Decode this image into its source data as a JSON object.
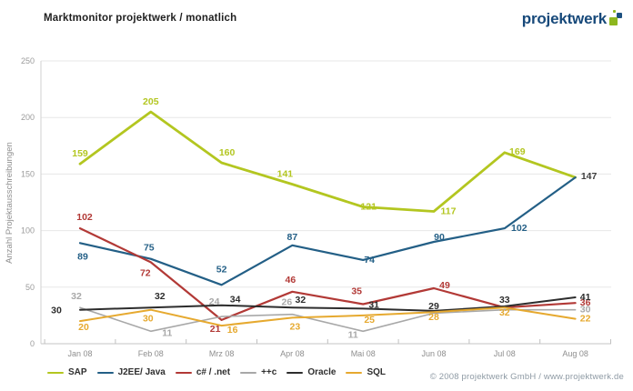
{
  "header": {
    "title": "Marktmonitor projektwerk / monatlich"
  },
  "logo": {
    "text": "projektwerk",
    "green": "#8db71e",
    "blue": "#1d5180"
  },
  "footer": {
    "copyright": "© 2008 projektwerk GmbH / www.projektwerk.de"
  },
  "chart_data": {
    "type": "line",
    "title": "Marktmonitor projektwerk / monatlich",
    "xlabel": "",
    "ylabel": "Anzahl Projektausschreibungen",
    "ylim": [
      0,
      250
    ],
    "yticks": [
      0,
      50,
      100,
      150,
      200,
      250
    ],
    "grid": "horizontal",
    "legend_position": "bottom-left",
    "categories": [
      "Jan 08",
      "Feb 08",
      "Mrz 08",
      "Apr 08",
      "Mai 08",
      "Jun 08",
      "Jul 08",
      "Aug 08"
    ],
    "series": [
      {
        "name": "SAP",
        "color": "#b3c620",
        "width": 2.8,
        "values": [
          159,
          205,
          160,
          141,
          121,
          117,
          169,
          147
        ],
        "label_show": [
          1,
          1,
          1,
          1,
          1,
          1,
          1,
          0
        ],
        "label_pos": [
          [
            0,
            -8
          ],
          [
            0,
            -8
          ],
          [
            6,
            -8
          ],
          [
            -8,
            -8
          ],
          [
            6,
            3
          ],
          [
            16,
            3
          ],
          [
            14,
            2
          ],
          [
            0,
            0
          ]
        ]
      },
      {
        "name": "J2EE/ Java",
        "color": "#235f86",
        "width": 2.2,
        "values": [
          89,
          75,
          52,
          87,
          74,
          90,
          102,
          147
        ],
        "label_show": [
          1,
          1,
          1,
          1,
          1,
          1,
          1,
          1
        ],
        "label_pos": [
          [
            3,
            18
          ],
          [
            -2,
            -9
          ],
          [
            0,
            -14
          ],
          [
            0,
            -6
          ],
          [
            7,
            3
          ],
          [
            6,
            -2
          ],
          [
            16,
            3
          ],
          [
            15,
            2
          ]
        ],
        "label_color_overrides": {
          "7": "#3f3f3f"
        }
      },
      {
        "name": "c# / .net",
        "color": "#b23936",
        "width": 2.2,
        "values": [
          102,
          72,
          21,
          46,
          35,
          49,
          32,
          36
        ],
        "label_show": [
          1,
          1,
          1,
          1,
          1,
          1,
          0,
          1
        ],
        "label_pos": [
          [
            5,
            -9
          ],
          [
            -6,
            15
          ],
          [
            -7,
            13
          ],
          [
            -2,
            -10
          ],
          [
            -7,
            -11
          ],
          [
            12,
            0
          ],
          [
            0,
            0
          ],
          [
            11,
            3
          ]
        ]
      },
      {
        "name": "++c",
        "color": "#a8a8a8",
        "width": 1.6,
        "values": [
          32,
          11,
          24,
          26,
          11,
          27,
          30,
          30
        ],
        "label_show": [
          1,
          1,
          1,
          1,
          1,
          0,
          0,
          1
        ],
        "label_pos": [
          [
            -4,
            -9
          ],
          [
            18,
            5
          ],
          [
            -8,
            -13
          ],
          [
            -6,
            -10
          ],
          [
            -11,
            7
          ],
          [
            0,
            0
          ],
          [
            0,
            0
          ],
          [
            11,
            3
          ]
        ]
      },
      {
        "name": "Oracle",
        "color": "#2d2d2d",
        "width": 2,
        "values": [
          30,
          32,
          34,
          32,
          31,
          29,
          33,
          41
        ],
        "label_show": [
          1,
          1,
          1,
          1,
          1,
          1,
          1,
          1
        ],
        "label_pos": [
          [
            -26,
            4
          ],
          [
            10,
            -9
          ],
          [
            15,
            -3
          ],
          [
            9,
            -5
          ],
          [
            12,
            -1
          ],
          [
            0,
            -2
          ],
          [
            0,
            -4
          ],
          [
            11,
            3
          ]
        ]
      },
      {
        "name": "SQL",
        "color": "#e6a92f",
        "width": 2,
        "values": [
          20,
          30,
          16,
          23,
          25,
          28,
          32,
          22
        ],
        "label_show": [
          1,
          1,
          1,
          1,
          1,
          1,
          1,
          1
        ],
        "label_pos": [
          [
            4,
            10
          ],
          [
            -3,
            13
          ],
          [
            12,
            8
          ],
          [
            3,
            13
          ],
          [
            7,
            8
          ],
          [
            0,
            9
          ],
          [
            0,
            9
          ],
          [
            11,
            3
          ]
        ]
      }
    ]
  }
}
